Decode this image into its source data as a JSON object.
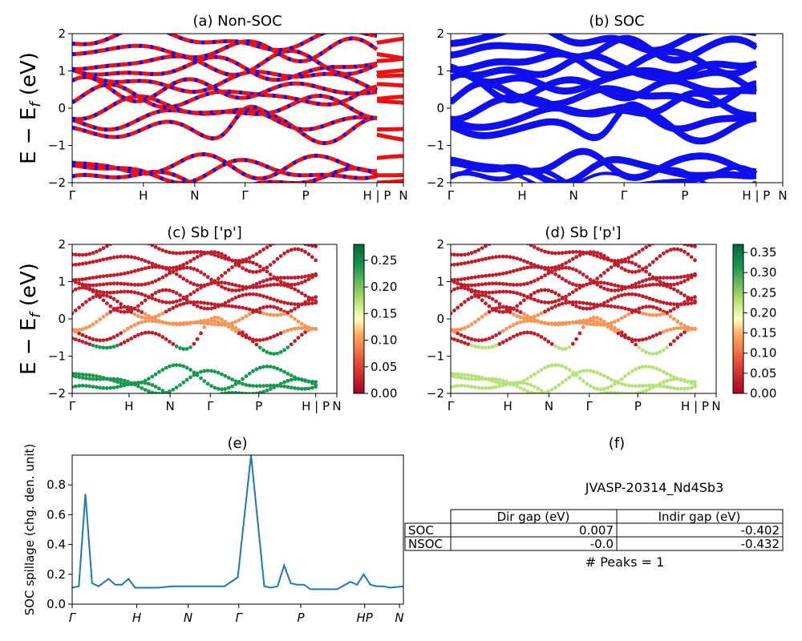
{
  "kpath_labels": [
    "Γ",
    "H",
    "N",
    "Γ",
    "P",
    "H | P",
    "N"
  ],
  "ylabel": "E − E_f (eV)",
  "colors": {
    "band_red": "#ee1111",
    "band_blue": "#1010ee",
    "line_e": "#1f77b4"
  },
  "chart_data": [
    {
      "id": "a",
      "type": "line",
      "title": "(a) Non-SOC",
      "ylim": [
        -2,
        2
      ],
      "yticks": [
        "2",
        "1",
        "0",
        "−1",
        "−2"
      ],
      "series_description": "bands",
      "bands": [
        {
          "x": [
            0,
            0.25,
            0.38,
            0.5,
            0.62,
            0.75,
            0.88,
            1
          ],
          "y": [
            -0.55,
            -0.35,
            -0.2,
            -0.25,
            -0.15,
            -0.2,
            -0.25,
            -0.2
          ]
        },
        {
          "x": [
            0,
            0.25,
            0.38,
            0.5,
            0.62,
            0.75,
            0.88,
            1
          ],
          "y": [
            0.3,
            0.6,
            0.2,
            0.05,
            0.35,
            0.2,
            0.25,
            0.3
          ]
        },
        {
          "x": [
            0,
            0.25,
            0.38,
            0.5,
            0.62,
            0.75,
            0.88,
            1
          ],
          "y": [
            -1.95,
            -1.75,
            -1.85,
            -1.9,
            -1.7,
            -1.65,
            -1.5,
            -1.5
          ]
        },
        {
          "x": [
            0,
            0.25,
            0.38,
            0.5,
            0.62,
            0.75,
            0.88,
            1
          ],
          "y": [
            1.85,
            1.7,
            1.35,
            1.6,
            1.3,
            1.6,
            1.4,
            1.5
          ]
        }
      ]
    },
    {
      "id": "b",
      "type": "line",
      "title": "(b) SOC",
      "ylim": [
        -2,
        2
      ],
      "yticks": [
        "2",
        "1",
        "0",
        "−1",
        "−2"
      ]
    },
    {
      "id": "c",
      "type": "scatter",
      "title": "(c)  Sb ['p']",
      "ylim": [
        -2,
        2
      ],
      "yticks": [
        "2",
        "1",
        "0",
        "−1",
        "−2"
      ],
      "colorbar": {
        "min": 0.0,
        "max": 0.28,
        "ticks": [
          "0.25",
          "0.20",
          "0.15",
          "0.10",
          "0.05",
          "0.00"
        ],
        "tick_values": [
          0.25,
          0.2,
          0.15,
          0.1,
          0.05,
          0.0
        ]
      }
    },
    {
      "id": "d",
      "type": "scatter",
      "title": "(d) Sb ['p']",
      "ylim": [
        -2,
        2
      ],
      "yticks": [
        "2",
        "1",
        "0",
        "−1",
        "−2"
      ],
      "colorbar": {
        "min": 0.0,
        "max": 0.37,
        "ticks": [
          "0.35",
          "0.30",
          "0.25",
          "0.20",
          "0.15",
          "0.10",
          "0.05",
          "0.00"
        ],
        "tick_values": [
          0.35,
          0.3,
          0.25,
          0.2,
          0.15,
          0.1,
          0.05,
          0.0
        ]
      }
    },
    {
      "id": "e",
      "type": "line",
      "title": "(e)",
      "ylabel": "SOC spillage (chg. den. unit)",
      "ylim": [
        0,
        1.0
      ],
      "yticks": [
        "0.8",
        "0.6",
        "0.4",
        "0.2",
        "0.0"
      ],
      "ytick_values": [
        0.8,
        0.6,
        0.4,
        0.2,
        0.0
      ],
      "xticks": [
        "Γ",
        "H",
        "N",
        "Γ",
        "P",
        "HP",
        "N"
      ],
      "x": [
        0,
        0.02,
        0.04,
        0.06,
        0.08,
        0.11,
        0.13,
        0.15,
        0.17,
        0.19,
        0.22,
        0.24,
        0.26,
        0.3,
        0.34,
        0.38,
        0.42,
        0.46,
        0.5,
        0.54,
        0.58,
        0.6,
        0.62,
        0.64,
        0.66,
        0.68,
        0.7,
        0.72,
        0.74,
        0.76,
        0.8,
        0.84,
        0.86,
        0.88,
        0.9,
        0.92,
        0.94,
        0.96,
        1.0
      ],
      "y": [
        0.11,
        0.12,
        0.74,
        0.14,
        0.12,
        0.17,
        0.13,
        0.13,
        0.17,
        0.11,
        0.11,
        0.11,
        0.11,
        0.12,
        0.12,
        0.12,
        0.12,
        0.12,
        0.18,
        1.0,
        0.12,
        0.11,
        0.12,
        0.26,
        0.14,
        0.13,
        0.13,
        0.1,
        0.1,
        0.1,
        0.1,
        0.15,
        0.13,
        0.2,
        0.13,
        0.12,
        0.12,
        0.11,
        0.12
      ]
    }
  ],
  "panel_f": {
    "title": "(f)",
    "material": "JVASP-20314_Nd4Sb3",
    "table": {
      "headers": [
        "Dir gap (eV)",
        "Indir gap (eV)"
      ],
      "rows": [
        {
          "label": "SOC",
          "dir": "0.007",
          "indir": "-0.402"
        },
        {
          "label": "NSOC",
          "dir": "-0.0",
          "indir": "-0.432"
        }
      ]
    },
    "peaks": "# Peaks = 1"
  }
}
